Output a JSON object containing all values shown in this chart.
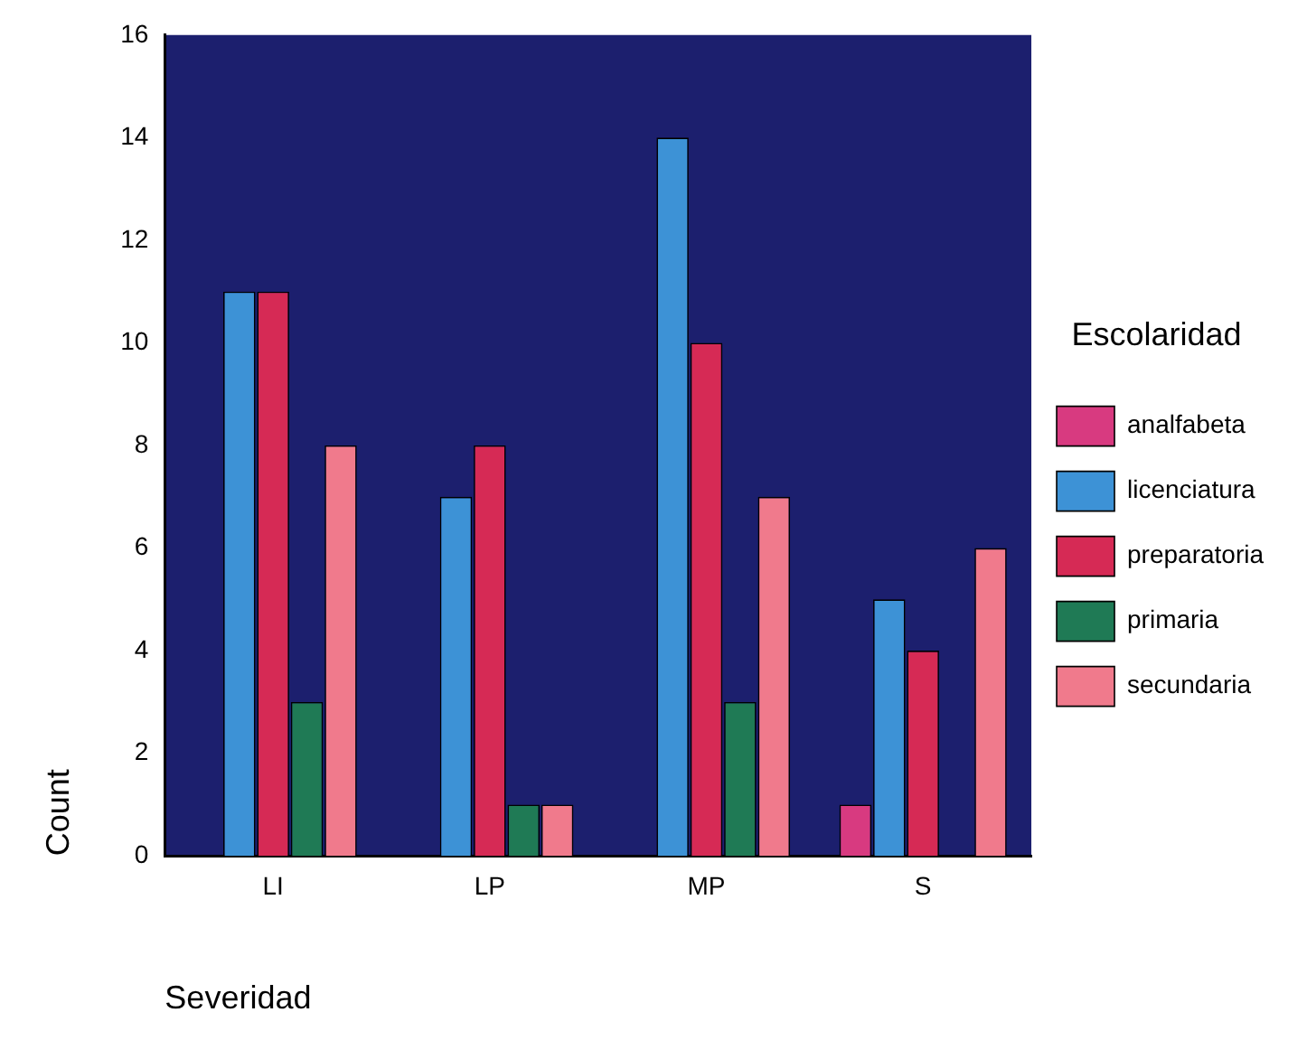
{
  "chart_data": {
    "type": "bar",
    "xlabel": "Severidad",
    "ylabel": "Count",
    "legend_title": "Escolaridad",
    "legend": "right",
    "categories": [
      "LI",
      "LP",
      "MP",
      "S"
    ],
    "series": [
      {
        "name": "analfabeta",
        "color": "#d83a80",
        "values": [
          0,
          0,
          0,
          1
        ]
      },
      {
        "name": "licenciatura",
        "color": "#3d92d6",
        "values": [
          11,
          7,
          14,
          5
        ]
      },
      {
        "name": "preparatoria",
        "color": "#d62a55",
        "values": [
          11,
          8,
          10,
          4
        ]
      },
      {
        "name": "primaria",
        "color": "#1f7a55",
        "values": [
          3,
          1,
          3,
          0
        ]
      },
      {
        "name": "secundaria",
        "color": "#f07a8c",
        "values": [
          8,
          1,
          7,
          6
        ]
      }
    ],
    "ylim": [
      0,
      16
    ],
    "yticks": [
      0,
      2,
      4,
      6,
      8,
      10,
      12,
      14,
      16
    ],
    "grid": false
  }
}
